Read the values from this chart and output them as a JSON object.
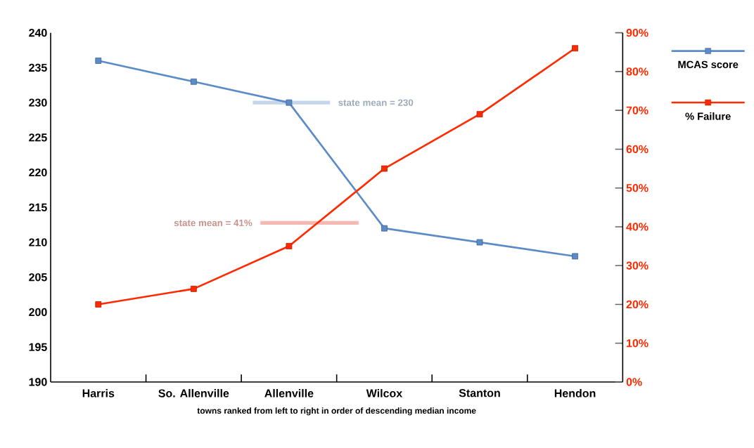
{
  "chart_data": {
    "type": "line",
    "xlabel": "towns ranked from left to right in order of descending median income",
    "categories": [
      "Harris",
      "So. Allenville",
      "Allenville",
      "Wilcox",
      "Stanton",
      "Hendon"
    ],
    "series": [
      {
        "name": "MCAS score",
        "color": "#5b8cc8",
        "values": [
          236,
          233,
          230,
          212,
          210,
          208
        ]
      },
      {
        "name": "% Failure",
        "color": "#ff2a00",
        "values": [
          20,
          24,
          35,
          55,
          69,
          86
        ],
        "axis": "y2"
      }
    ],
    "ylim": [
      190,
      240
    ],
    "yticks": [
      190,
      195,
      200,
      205,
      210,
      215,
      220,
      225,
      230,
      235,
      240
    ],
    "y2lim": [
      0,
      90
    ],
    "y2ticks": [
      {
        "value": 0,
        "label": "0%"
      },
      {
        "value": 10,
        "label": "10%"
      },
      {
        "value": 20,
        "label": "20%"
      },
      {
        "value": 30,
        "label": "30%"
      },
      {
        "value": 40,
        "label": "40%"
      },
      {
        "value": 50,
        "label": "50%"
      },
      {
        "value": 60,
        "label": "60%"
      },
      {
        "value": 70,
        "label": "70%"
      },
      {
        "value": 80,
        "label": "80%"
      },
      {
        "value": 90,
        "label": "90%"
      }
    ],
    "ref_lines": [
      {
        "axis": "y",
        "value": 230,
        "label": "state mean = 230",
        "color": "#c5d6ea"
      },
      {
        "axis": "y2",
        "value": 41,
        "label": "state mean = 41%",
        "color": "#f8b8b2"
      }
    ],
    "legend": "top right",
    "marker": "square",
    "line_style": "solid",
    "grid": false
  }
}
